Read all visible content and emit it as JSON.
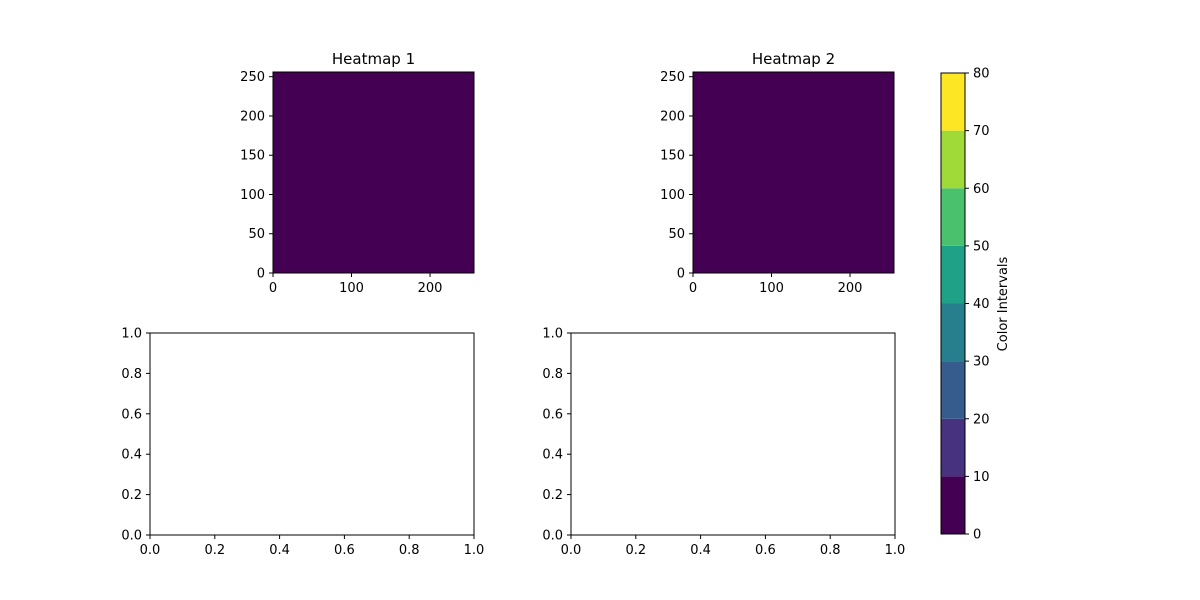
{
  "chart_data": [
    {
      "type": "heatmap",
      "title": "Heatmap 1",
      "xlim": [
        0,
        256
      ],
      "ylim": [
        0,
        256
      ],
      "xticks": [
        0,
        100,
        200
      ],
      "yticks": [
        0,
        50,
        100,
        150,
        200,
        250
      ],
      "value_range": [
        0,
        10
      ],
      "fill_color": "#440154"
    },
    {
      "type": "heatmap",
      "title": "Heatmap 2",
      "xlim": [
        0,
        256
      ],
      "ylim": [
        0,
        256
      ],
      "xticks": [
        0,
        100,
        200
      ],
      "yticks": [
        0,
        50,
        100,
        150,
        200,
        250
      ],
      "value_range": [
        0,
        10
      ],
      "fill_color": "#440154"
    },
    {
      "type": "scatter",
      "empty": true,
      "xlim": [
        0,
        1
      ],
      "ylim": [
        0,
        1
      ],
      "xticks": [
        "0.0",
        "0.2",
        "0.4",
        "0.6",
        "0.8",
        "1.0"
      ],
      "yticks": [
        "0.0",
        "0.2",
        "0.4",
        "0.6",
        "0.8",
        "1.0"
      ]
    },
    {
      "type": "scatter",
      "empty": true,
      "xlim": [
        0,
        1
      ],
      "ylim": [
        0,
        1
      ],
      "xticks": [
        "0.0",
        "0.2",
        "0.4",
        "0.6",
        "0.8",
        "1.0"
      ],
      "yticks": [
        "0.0",
        "0.2",
        "0.4",
        "0.6",
        "0.8",
        "1.0"
      ]
    }
  ],
  "colorbar": {
    "label": "Color Intervals",
    "boundaries": [
      0,
      10,
      20,
      30,
      40,
      50,
      60,
      70,
      80
    ],
    "colors": [
      "#440154",
      "#46327e",
      "#365c8d",
      "#277f8e",
      "#1fa187",
      "#4ac16d",
      "#a0da39",
      "#fde725"
    ]
  }
}
